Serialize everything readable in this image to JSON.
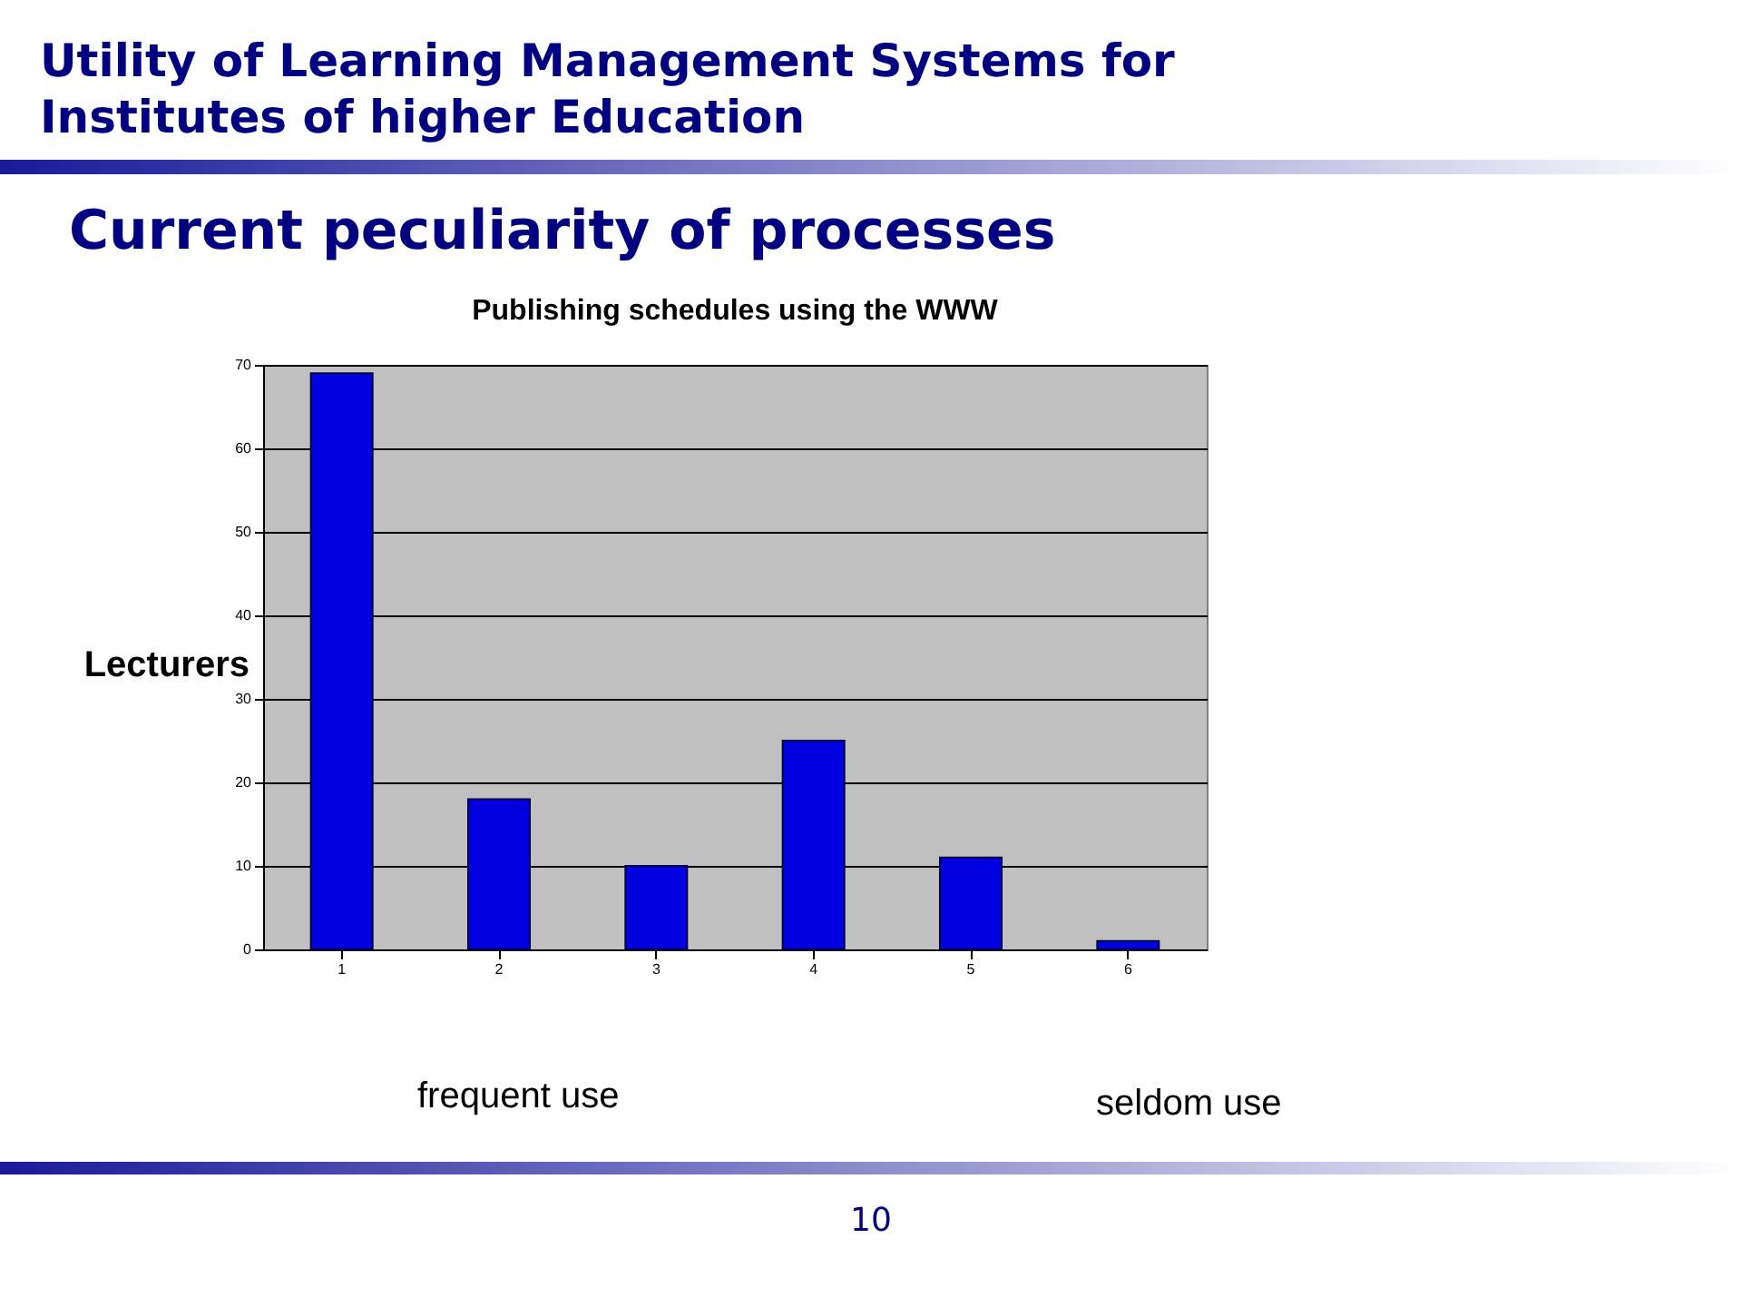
{
  "chart_data": {
    "type": "bar",
    "title": "Utility of Learning Management Systems for Institutes of higher Education",
    "subtitle": "Current peculiarity of processes",
    "ylabel": "Lecturers",
    "annotations": [
      "Publishing schedules using the WWW",
      "frequent use",
      "seldom use",
      "10"
    ],
    "categories": [
      "1",
      "2",
      "3",
      "4",
      "5",
      "6"
    ],
    "values": [
      69,
      18,
      10,
      25,
      11,
      1
    ],
    "color": "#0000e0",
    "ylim": [
      0,
      70
    ],
    "yticks": [
      0,
      10,
      20,
      30,
      40,
      50,
      60,
      70
    ],
    "grid": "y"
  }
}
